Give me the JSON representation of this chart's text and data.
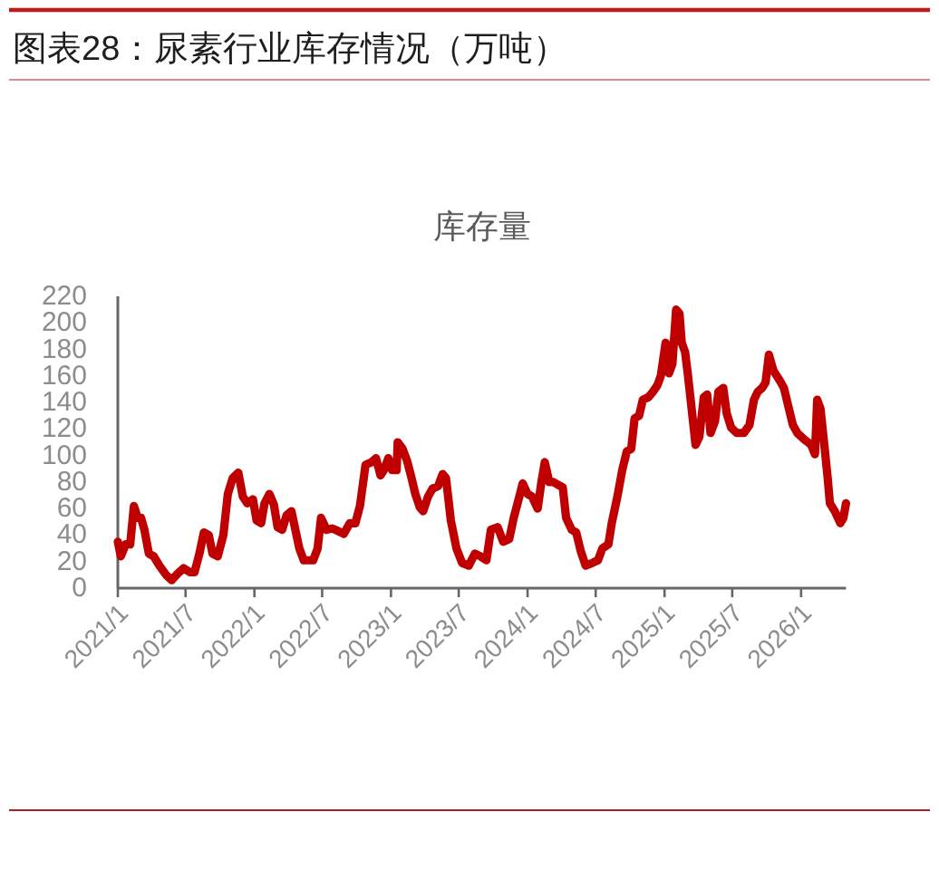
{
  "chart_data": {
    "type": "line",
    "title": "图表28：尿素行业库存情况（万吨）",
    "subtitle": "库存量",
    "color": "#c00000",
    "x": [
      "2021-01-01",
      "2021-01-09",
      "2021-01-22",
      "2021-02-03",
      "2021-02-13",
      "2021-02-23",
      "2021-03-04",
      "2021-03-13",
      "2021-03-25",
      "2021-04-07",
      "2021-04-22",
      "2021-05-10",
      "2021-05-25",
      "2021-06-10",
      "2021-06-26",
      "2021-07-13",
      "2021-07-25",
      "2021-08-07",
      "2021-08-19",
      "2021-09-01",
      "2021-09-11",
      "2021-09-25",
      "2021-10-10",
      "2021-10-22",
      "2021-11-04",
      "2021-11-19",
      "2021-12-01",
      "2021-12-13",
      "2021-12-28",
      "2022-01-07",
      "2022-01-19",
      "2022-01-28",
      "2022-02-10",
      "2022-02-22",
      "2022-03-04",
      "2022-03-16",
      "2022-03-28",
      "2022-04-10",
      "2022-04-19",
      "2022-05-01",
      "2022-05-13",
      "2022-05-25",
      "2022-06-07",
      "2022-06-19",
      "2022-06-28",
      "2022-07-13",
      "2022-07-28",
      "2022-08-13",
      "2022-08-28",
      "2022-09-13",
      "2022-09-28",
      "2022-10-10",
      "2022-10-25",
      "2022-11-10",
      "2022-11-22",
      "2022-12-04",
      "2022-12-13",
      "2022-12-25",
      "2023-01-04",
      "2023-01-16",
      "2023-01-19",
      "2023-02-01",
      "2023-02-13",
      "2023-02-25",
      "2023-03-07",
      "2023-03-19",
      "2023-03-28",
      "2023-04-10",
      "2023-04-22",
      "2023-05-07",
      "2023-05-19",
      "2023-05-28",
      "2023-06-10",
      "2023-06-25",
      "2023-07-10",
      "2023-07-28",
      "2023-08-13",
      "2023-08-28",
      "2023-09-13",
      "2023-09-25",
      "2023-10-13",
      "2023-10-28",
      "2023-11-13",
      "2023-11-25",
      "2023-12-10",
      "2023-12-19",
      "2024-01-01",
      "2024-01-13",
      "2024-01-28",
      "2024-02-07",
      "2024-02-16",
      "2024-02-28",
      "2024-03-10",
      "2024-03-22",
      "2024-04-04",
      "2024-04-13",
      "2024-04-28",
      "2024-05-10",
      "2024-05-22",
      "2024-06-04",
      "2024-06-22",
      "2024-07-07",
      "2024-07-19",
      "2024-08-04",
      "2024-08-13",
      "2024-08-28",
      "2024-09-10",
      "2024-09-22",
      "2024-10-04",
      "2024-10-13",
      "2024-10-25",
      "2024-11-04",
      "2024-11-19",
      "2024-12-01",
      "2024-12-13",
      "2024-12-22",
      "2025-01-04",
      "2025-01-13",
      "2025-01-22",
      "2025-02-01",
      "2025-02-10",
      "2025-02-16",
      "2025-02-25",
      "2025-03-04",
      "2025-03-13",
      "2025-03-25",
      "2025-04-04",
      "2025-04-16",
      "2025-04-25",
      "2025-05-04",
      "2025-05-16",
      "2025-05-25",
      "2025-06-07",
      "2025-06-16",
      "2025-06-28",
      "2025-07-13",
      "2025-08-01",
      "2025-08-16",
      "2025-08-28",
      "2025-09-07",
      "2025-09-19",
      "2025-09-28",
      "2025-10-07",
      "2025-10-19",
      "2025-11-04",
      "2025-11-16",
      "2025-11-28",
      "2025-12-10",
      "2025-12-22",
      "2026-01-10",
      "2026-01-19",
      "2026-01-28",
      "2026-02-07",
      "2026-02-13",
      "2026-02-22",
      "2026-03-04",
      "2026-03-13",
      "2026-03-19",
      "2026-04-01",
      "2026-04-16",
      "2026-04-24",
      "2026-05-01"
    ],
    "values": [
      35,
      24,
      33,
      33,
      62,
      53,
      53,
      44,
      26,
      24,
      17,
      10,
      6,
      11,
      15,
      12,
      12,
      26,
      42,
      40,
      26,
      24,
      40,
      71,
      83,
      87,
      69,
      64,
      67,
      51,
      49,
      64,
      71,
      63,
      46,
      44,
      55,
      58,
      46,
      30,
      21,
      21,
      21,
      30,
      53,
      44,
      45,
      43,
      41,
      49,
      49,
      62,
      93,
      95,
      98,
      85,
      89,
      98,
      89,
      89,
      110,
      105,
      96,
      83,
      71,
      61,
      58,
      69,
      75,
      77,
      86,
      83,
      51,
      30,
      19,
      17,
      26,
      24,
      21,
      44,
      46,
      35,
      37,
      53,
      69,
      79,
      71,
      69,
      60,
      80,
      95,
      80,
      80,
      78,
      76,
      53,
      44,
      42,
      28,
      17,
      19,
      21,
      30,
      33,
      49,
      69,
      89,
      103,
      105,
      128,
      130,
      142,
      144,
      148,
      153,
      160,
      185,
      162,
      169,
      210,
      207,
      185,
      178,
      162,
      139,
      108,
      114,
      144,
      146,
      117,
      126,
      148,
      151,
      132,
      121,
      117,
      117,
      123,
      142,
      148,
      151,
      155,
      176,
      164,
      157,
      151,
      137,
      123,
      117,
      112,
      110,
      108,
      101,
      142,
      135,
      108,
      83,
      64,
      58,
      49,
      53,
      64
    ],
    "xlim": [
      "2021-01-01",
      "2026-05-01"
    ],
    "xticks": [
      {
        "value": "2021-01-01",
        "label": "2021/1"
      },
      {
        "value": "2021-07-01",
        "label": "2021/7"
      },
      {
        "value": "2022-01-01",
        "label": "2022/1"
      },
      {
        "value": "2022-07-01",
        "label": "2022/7"
      },
      {
        "value": "2023-01-01",
        "label": "2023/1"
      },
      {
        "value": "2023-07-01",
        "label": "2023/7"
      },
      {
        "value": "2024-01-01",
        "label": "2024/1"
      },
      {
        "value": "2024-07-01",
        "label": "2024/7"
      },
      {
        "value": "2025-01-01",
        "label": "2025/1"
      },
      {
        "value": "2025-07-01",
        "label": "2025/7"
      },
      {
        "value": "2026-01-01",
        "label": "2026/1"
      }
    ],
    "ylim": [
      0,
      220
    ],
    "yticks": [
      0,
      20,
      40,
      60,
      80,
      100,
      120,
      140,
      160,
      180,
      200,
      220
    ]
  }
}
